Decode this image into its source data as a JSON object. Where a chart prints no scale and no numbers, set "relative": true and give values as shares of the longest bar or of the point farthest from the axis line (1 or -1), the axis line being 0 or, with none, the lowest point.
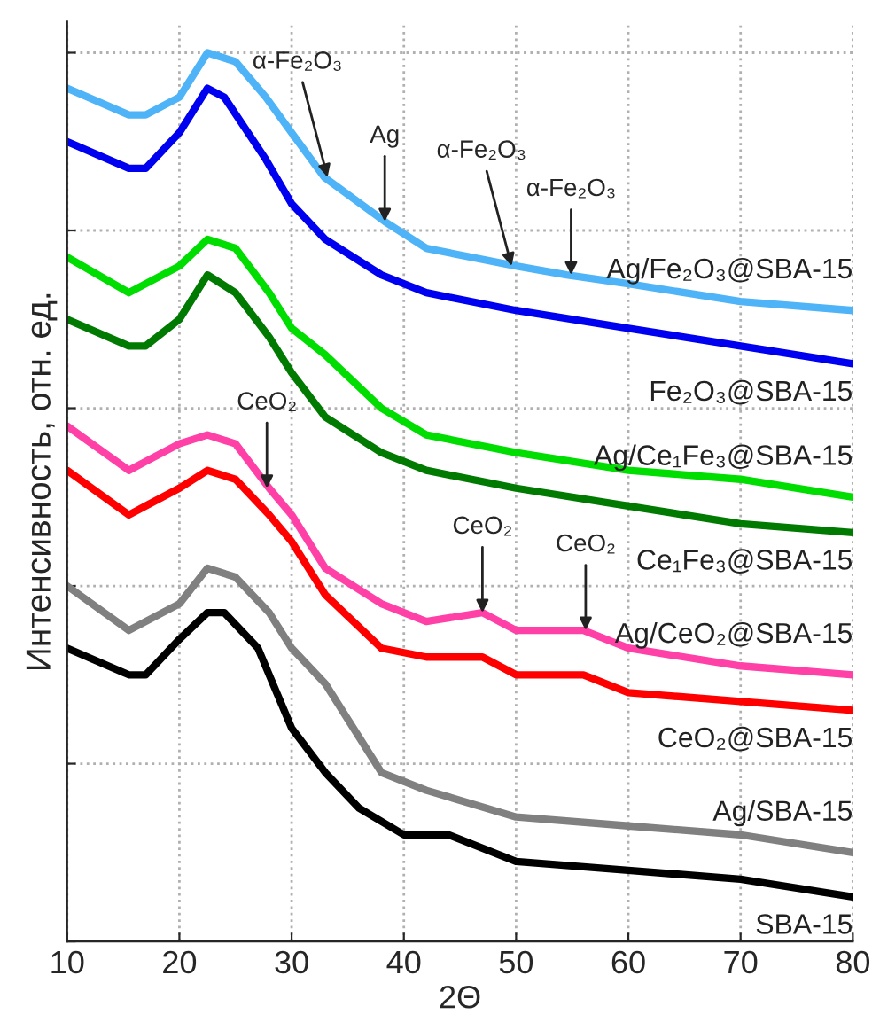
{
  "chart_data": {
    "type": "line",
    "relative": true,
    "xlabel": "2Θ",
    "ylabel": "Интенсивность, отн. ед.",
    "xlim": [
      10,
      80
    ],
    "xticks": [
      10,
      20,
      30,
      40,
      50,
      60,
      70,
      80
    ],
    "grid": true,
    "legend": false,
    "tick_labels": "x",
    "marker": "none",
    "line_style": "solid",
    "series": [
      {
        "name": "Ag/Fe₂O₃@SBA-15",
        "color": "#4fb3f7",
        "x": [
          10,
          15.5,
          17,
          20,
          22.5,
          25,
          27.7,
          30,
          32.9,
          38.3,
          42,
          50,
          54.5,
          60,
          70,
          80
        ],
        "values": [
          0.96,
          0.93,
          0.93,
          0.95,
          1.0,
          0.99,
          0.95,
          0.91,
          0.86,
          0.81,
          0.78,
          0.76,
          0.75,
          0.74,
          0.72,
          0.71
        ]
      },
      {
        "name": "Fe₂O₃@SBA-15",
        "color": "#0000f0",
        "x": [
          10,
          15.5,
          17,
          20,
          22.5,
          24,
          27.7,
          30,
          33,
          38,
          42,
          50,
          60,
          70,
          80
        ],
        "values": [
          0.9,
          0.87,
          0.87,
          0.91,
          0.96,
          0.95,
          0.88,
          0.83,
          0.79,
          0.75,
          0.73,
          0.71,
          0.69,
          0.67,
          0.65
        ]
      },
      {
        "name": "Ag/Ce₁Fe₃@SBA-15",
        "color": "#00dd00",
        "x": [
          10,
          15.5,
          17,
          20,
          22.5,
          25,
          28,
          30,
          33,
          38,
          42,
          50,
          60,
          70,
          80
        ],
        "values": [
          0.77,
          0.73,
          0.74,
          0.76,
          0.79,
          0.78,
          0.73,
          0.69,
          0.66,
          0.6,
          0.57,
          0.55,
          0.53,
          0.52,
          0.5
        ]
      },
      {
        "name": "Ce₁Fe₃@SBA-15",
        "color": "#007a00",
        "x": [
          10,
          15.5,
          17,
          20,
          22.5,
          25,
          28,
          30,
          33,
          38,
          42,
          50,
          60,
          70,
          80
        ],
        "values": [
          0.7,
          0.67,
          0.67,
          0.7,
          0.75,
          0.73,
          0.68,
          0.64,
          0.59,
          0.55,
          0.53,
          0.51,
          0.49,
          0.47,
          0.46
        ]
      },
      {
        "name": "Ag/CeO₂@SBA-15",
        "color": "#ff40a6",
        "x": [
          10,
          15.5,
          17,
          20,
          22.5,
          25,
          28,
          30,
          33,
          38,
          42,
          47,
          50,
          53,
          56,
          60,
          70,
          80
        ],
        "values": [
          0.58,
          0.53,
          0.54,
          0.56,
          0.57,
          0.56,
          0.51,
          0.48,
          0.42,
          0.38,
          0.36,
          0.37,
          0.35,
          0.35,
          0.35,
          0.33,
          0.31,
          0.3
        ]
      },
      {
        "name": "CeO₂@SBA-15",
        "color": "#ff0000",
        "x": [
          10,
          15.5,
          17,
          20,
          22.5,
          25,
          28,
          30,
          33,
          38,
          42,
          47,
          50,
          53,
          56,
          60,
          70,
          80
        ],
        "values": [
          0.53,
          0.48,
          0.49,
          0.51,
          0.53,
          0.52,
          0.48,
          0.45,
          0.39,
          0.33,
          0.32,
          0.32,
          0.3,
          0.3,
          0.3,
          0.28,
          0.27,
          0.26
        ]
      },
      {
        "name": "Ag/SBA-15",
        "color": "#808080",
        "x": [
          10,
          15.5,
          17,
          20,
          22.5,
          25,
          28,
          30,
          33,
          38,
          42,
          50,
          60,
          70,
          80
        ],
        "values": [
          0.4,
          0.35,
          0.36,
          0.38,
          0.42,
          0.41,
          0.37,
          0.33,
          0.29,
          0.19,
          0.17,
          0.14,
          0.13,
          0.12,
          0.1
        ]
      },
      {
        "name": "SBA-15",
        "color": "#000000",
        "x": [
          10,
          15.5,
          17,
          20,
          22.5,
          24,
          27,
          30,
          33,
          36,
          40,
          44,
          50,
          60,
          70,
          80
        ],
        "values": [
          0.33,
          0.3,
          0.3,
          0.34,
          0.37,
          0.37,
          0.33,
          0.24,
          0.19,
          0.15,
          0.12,
          0.12,
          0.09,
          0.08,
          0.07,
          0.05
        ]
      }
    ],
    "annotations": [
      {
        "text": "α-Fe₂O₃",
        "x": 33.2,
        "y": 0.86
      },
      {
        "text": "Ag",
        "x": 38.3,
        "y": 0.81
      },
      {
        "text": "α-Fe₂O₃",
        "x": 49.6,
        "y": 0.76
      },
      {
        "text": "α-Fe₂O₃",
        "x": 54.9,
        "y": 0.75
      },
      {
        "text": "CeO₂",
        "x": 27.8,
        "y": 0.51
      },
      {
        "text": "CeO₂",
        "x": 47,
        "y": 0.37
      },
      {
        "text": "CeO₂",
        "x": 56.2,
        "y": 0.35
      }
    ]
  }
}
